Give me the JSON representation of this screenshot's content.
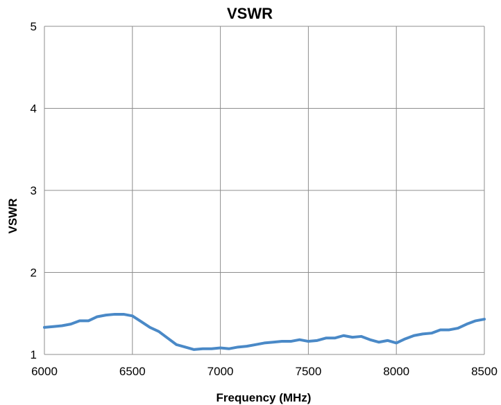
{
  "chart_data": {
    "type": "line",
    "title": "VSWR",
    "xlabel": "Frequency (MHz)",
    "ylabel": "VSWR",
    "xlim": [
      6000,
      8500
    ],
    "ylim": [
      1,
      5
    ],
    "xticks": [
      6000,
      6500,
      7000,
      7500,
      8000,
      8500
    ],
    "yticks": [
      1,
      2,
      3,
      4,
      5
    ],
    "grid": true,
    "legend": "none",
    "colors": {
      "line": "#4A89C7",
      "grid": "#8C8C8C",
      "axis": "#8C8C8C"
    },
    "series": [
      {
        "values": [
          [
            6000,
            1.33
          ],
          [
            6050,
            1.34
          ],
          [
            6100,
            1.35
          ],
          [
            6150,
            1.37
          ],
          [
            6200,
            1.41
          ],
          [
            6250,
            1.41
          ],
          [
            6300,
            1.46
          ],
          [
            6350,
            1.48
          ],
          [
            6400,
            1.49
          ],
          [
            6450,
            1.49
          ],
          [
            6500,
            1.47
          ],
          [
            6550,
            1.4
          ],
          [
            6600,
            1.33
          ],
          [
            6650,
            1.28
          ],
          [
            6700,
            1.2
          ],
          [
            6750,
            1.12
          ],
          [
            6800,
            1.09
          ],
          [
            6850,
            1.06
          ],
          [
            6900,
            1.07
          ],
          [
            6950,
            1.07
          ],
          [
            7000,
            1.08
          ],
          [
            7050,
            1.07
          ],
          [
            7100,
            1.09
          ],
          [
            7150,
            1.1
          ],
          [
            7200,
            1.12
          ],
          [
            7250,
            1.14
          ],
          [
            7300,
            1.15
          ],
          [
            7350,
            1.16
          ],
          [
            7400,
            1.16
          ],
          [
            7450,
            1.18
          ],
          [
            7500,
            1.16
          ],
          [
            7550,
            1.17
          ],
          [
            7600,
            1.2
          ],
          [
            7650,
            1.2
          ],
          [
            7700,
            1.23
          ],
          [
            7750,
            1.21
          ],
          [
            7800,
            1.22
          ],
          [
            7850,
            1.18
          ],
          [
            7900,
            1.15
          ],
          [
            7950,
            1.17
          ],
          [
            8000,
            1.14
          ],
          [
            8050,
            1.19
          ],
          [
            8100,
            1.23
          ],
          [
            8150,
            1.25
          ],
          [
            8200,
            1.26
          ],
          [
            8250,
            1.3
          ],
          [
            8300,
            1.3
          ],
          [
            8350,
            1.32
          ],
          [
            8400,
            1.37
          ],
          [
            8450,
            1.41
          ],
          [
            8500,
            1.43
          ]
        ]
      }
    ]
  }
}
